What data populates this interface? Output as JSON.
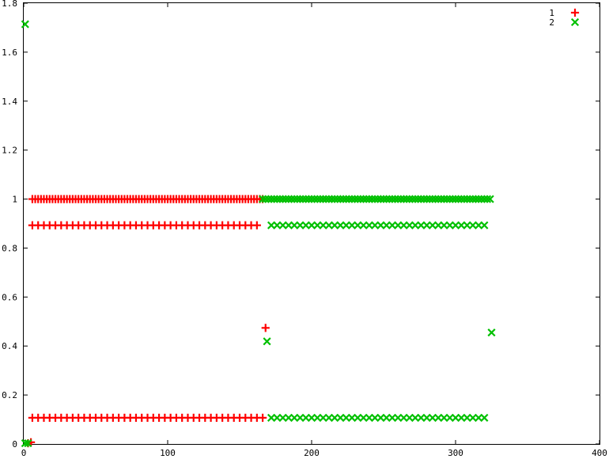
{
  "chart_data": {
    "type": "scatter",
    "title": "",
    "xlabel": "",
    "ylabel": "",
    "xlim": [
      0,
      400
    ],
    "ylim": [
      0,
      1.8
    ],
    "xticks": [
      0,
      100,
      200,
      300,
      400
    ],
    "xtick_labels": [
      "0",
      "100",
      "200",
      "300",
      "400"
    ],
    "yticks": [
      0,
      0.2,
      0.4,
      0.6,
      0.8,
      1,
      1.2,
      1.4,
      1.6,
      1.8
    ],
    "ytick_labels": [
      "0",
      "0.2",
      "0.4",
      "0.6",
      "0.8",
      "1",
      "1.2",
      "1.4",
      "1.6",
      "1.8"
    ],
    "grid": false,
    "legend_position": "top-right",
    "series": [
      {
        "name": "1",
        "marker": "plus",
        "color": "#ff0000",
        "bands": [
          {
            "y": 1.0,
            "x_start": 6,
            "x_end": 166,
            "step": 2
          },
          {
            "y": 0.893,
            "x_start": 6,
            "x_end": 164,
            "step": 4
          },
          {
            "y": 0.107,
            "x_start": 6,
            "x_end": 166,
            "step": 4
          }
        ],
        "points": [
          {
            "x": 3,
            "y": 0.003
          },
          {
            "x": 5,
            "y": 0.007
          },
          {
            "x": 168,
            "y": 0.474
          }
        ]
      },
      {
        "name": "2",
        "marker": "cross",
        "color": "#00c000",
        "bands": [
          {
            "y": 1.0,
            "x_start": 166,
            "x_end": 324,
            "step": 2
          },
          {
            "y": 0.893,
            "x_start": 172,
            "x_end": 322,
            "step": 4
          },
          {
            "y": 0.107,
            "x_start": 172,
            "x_end": 322,
            "step": 4
          }
        ],
        "points": [
          {
            "x": 1,
            "y": 1.714
          },
          {
            "x": 1,
            "y": 0.003
          },
          {
            "x": 3,
            "y": 0.003
          },
          {
            "x": 169,
            "y": 0.419
          },
          {
            "x": 325,
            "y": 0.455
          }
        ]
      }
    ]
  }
}
